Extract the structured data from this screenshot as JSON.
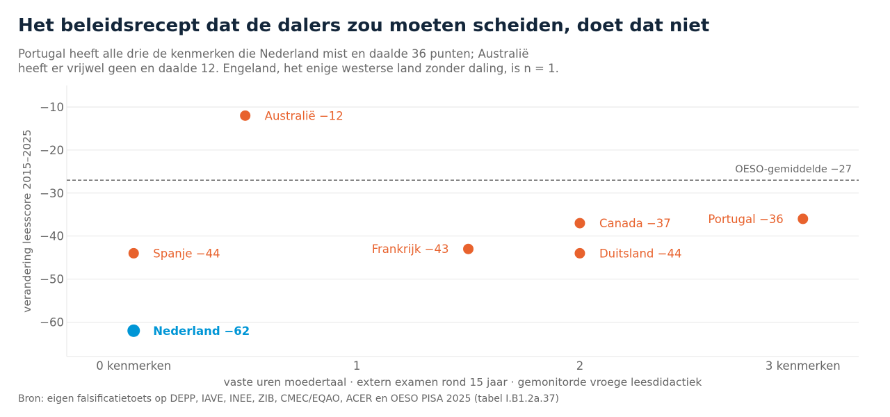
{
  "title": "Het beleidsrecept dat de dalers zou moeten scheiden, doet dat niet",
  "subtitle_lines": [
    "Portugal heeft alle drie de kenmerken die Nederland mist en daalde 36 punten; Australië",
    "heeft er vrijwel geen en daalde 12. Engeland, het enige westerse land zonder daling, is n = 1."
  ],
  "source": "Bron: eigen falsificatietoets op DEPP, IAVE, INEE, ZIB, CMEC/EQAO, ACER en OESO PISA 2025 (tabel I.B1.2a.37)",
  "colors": {
    "orange": "#e8622d",
    "blue": "#0096d6",
    "reference": "#666666",
    "grid": "#e6e6e6"
  },
  "chart_data": {
    "type": "scatter",
    "xlabel": "vaste uren moedertaal · extern examen rond 15 jaar · gemonitorde vroege leesdidactiek",
    "ylabel": "verandering leesscore 2015–2025",
    "xlim": [
      -0.3,
      3.25
    ],
    "ylim": [
      -68,
      -5
    ],
    "x_ticks": [
      {
        "value": 0,
        "label": "0 kenmerken"
      },
      {
        "value": 1,
        "label": "1"
      },
      {
        "value": 2,
        "label": "2"
      },
      {
        "value": 3,
        "label": "3 kenmerken"
      }
    ],
    "y_ticks": [
      {
        "value": -10,
        "label": "−10"
      },
      {
        "value": -20,
        "label": "−20"
      },
      {
        "value": -30,
        "label": "−30"
      },
      {
        "value": -40,
        "label": "−40"
      },
      {
        "value": -50,
        "label": "−50"
      },
      {
        "value": -60,
        "label": "−60"
      }
    ],
    "grid": "horizontal",
    "reference_line": {
      "y": -27,
      "label": "OESO-gemiddelde −27"
    },
    "points": [
      {
        "country": "Nederland",
        "x": 0,
        "y": -62,
        "label": "Nederland  −62",
        "color": "blue",
        "label_side": "right",
        "highlight": true
      },
      {
        "country": "Spanje",
        "x": 0,
        "y": -44,
        "label": "Spanje  −44",
        "color": "orange",
        "label_side": "right"
      },
      {
        "country": "Australië",
        "x": 0.5,
        "y": -12,
        "label": "Australië  −12",
        "color": "orange",
        "label_side": "right"
      },
      {
        "country": "Frankrijk",
        "x": 1.5,
        "y": -43,
        "label": "Frankrijk  −43",
        "color": "orange",
        "label_side": "left"
      },
      {
        "country": "Canada",
        "x": 2,
        "y": -37,
        "label": "Canada  −37",
        "color": "orange",
        "label_side": "right"
      },
      {
        "country": "Duitsland",
        "x": 2,
        "y": -44,
        "label": "Duitsland  −44",
        "color": "orange",
        "label_side": "right"
      },
      {
        "country": "Portugal",
        "x": 3,
        "y": -36,
        "label": "Portugal  −36",
        "color": "orange",
        "label_side": "left"
      }
    ]
  }
}
